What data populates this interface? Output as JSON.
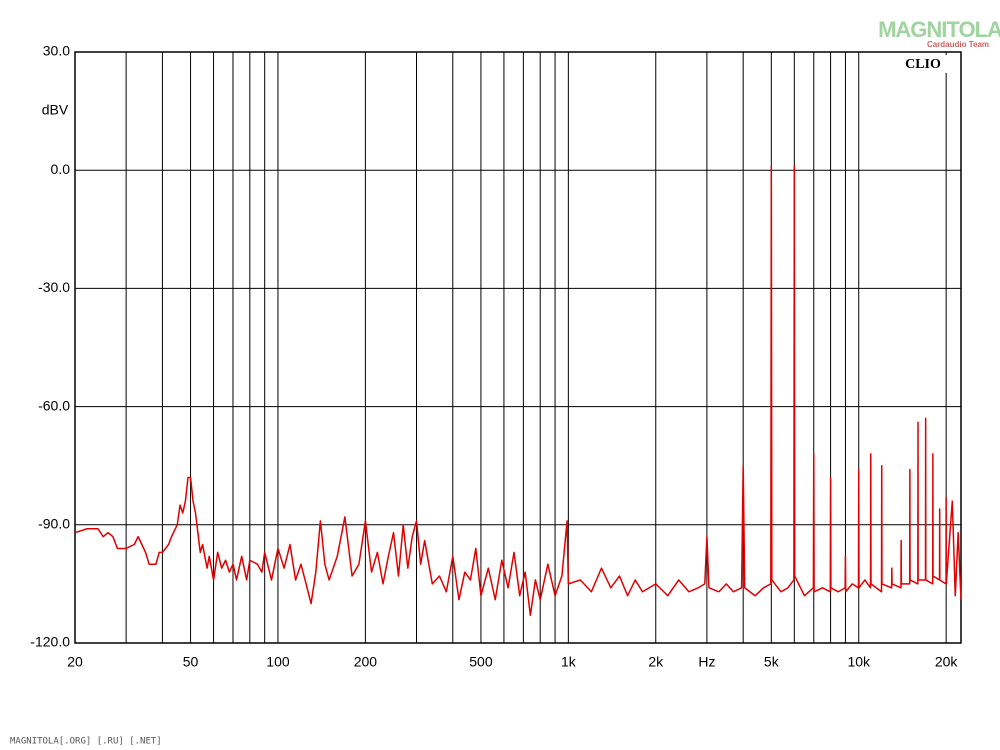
{
  "chart_data": {
    "type": "line",
    "y_axis_label": "dBV",
    "brand": "CLIO",
    "watermark": "MAGNITOLA",
    "watermark_sub": "Cardaudio Team",
    "footer": "MAGNITOLA[.ORG] [.RU] [.NET]",
    "xscale": "log",
    "grid": true,
    "xlim": [
      20,
      22500
    ],
    "ylim": [
      -120,
      30
    ],
    "xticks": [
      20,
      50,
      100,
      200,
      500,
      {
        "value": 1000,
        "label": "1k"
      },
      {
        "value": 2000,
        "label": "2k"
      },
      {
        "value": 3000,
        "label": "Hz"
      },
      {
        "value": 5000,
        "label": "5k"
      },
      {
        "value": 10000,
        "label": "10k"
      },
      {
        "value": 20000,
        "label": "20k"
      }
    ],
    "xminor": [
      30,
      40,
      60,
      70,
      80,
      90,
      300,
      400,
      600,
      700,
      800,
      900,
      4000,
      6000,
      7000,
      8000,
      9000
    ],
    "yticks": [
      {
        "value": 30,
        "label": "30.0"
      },
      {
        "value": 0,
        "label": "0.0"
      },
      {
        "value": -30,
        "label": "-30.0"
      },
      {
        "value": -60,
        "label": "-60.0"
      },
      {
        "value": -90,
        "label": "-90.0"
      },
      {
        "value": -120,
        "label": "-120.0"
      }
    ],
    "series": [
      {
        "color": "#e00000",
        "x": [
          20,
          22,
          24,
          25,
          26,
          27,
          28,
          30,
          32,
          33,
          35,
          36,
          38,
          39,
          40,
          42,
          43,
          45,
          46,
          47,
          48,
          49,
          50,
          51,
          52,
          54,
          55,
          57,
          58,
          60,
          62,
          64,
          66,
          68,
          70,
          72,
          75,
          78,
          80,
          85,
          88,
          90,
          95,
          100,
          105,
          110,
          115,
          120,
          125,
          130,
          135,
          140,
          145,
          150,
          160,
          170,
          180,
          190,
          200,
          210,
          220,
          230,
          240,
          250,
          260,
          270,
          280,
          290,
          300,
          310,
          320,
          340,
          360,
          380,
          400,
          420,
          440,
          460,
          480,
          500,
          530,
          560,
          590,
          620,
          650,
          680,
          710,
          740,
          770,
          800,
          850,
          900,
          950,
          990,
          1000,
          1100,
          1200,
          1300,
          1400,
          1500,
          1600,
          1700,
          1800,
          2000,
          2200,
          2400,
          2600,
          2800,
          2950,
          3000,
          3050,
          3300,
          3500,
          3700,
          3950,
          4000,
          4050,
          4400,
          4700,
          4980,
          5000,
          5020,
          5400,
          5700,
          5980,
          6000,
          6020,
          6500,
          6980,
          7000,
          7020,
          7500,
          7980,
          8000,
          8020,
          8500,
          8980,
          9000,
          9020,
          9500,
          9980,
          10000,
          10020,
          10500,
          10980,
          11000,
          11020,
          11980,
          12000,
          12020,
          12980,
          13000,
          13020,
          13980,
          14000,
          14020,
          14980,
          15000,
          15020,
          15980,
          16000,
          16020,
          16980,
          17000,
          17020,
          17980,
          18000,
          18020,
          18980,
          19000,
          19020,
          19980,
          20000,
          20020,
          21000,
          21500,
          22000,
          22500
        ],
        "values": [
          -92,
          -91,
          -91,
          -93,
          -92,
          -93,
          -96,
          -96,
          -95,
          -93,
          -97,
          -100,
          -100,
          -97,
          -97,
          -95,
          -93,
          -90,
          -85,
          -87,
          -84,
          -78,
          -78,
          -84,
          -87,
          -97,
          -95,
          -101,
          -98,
          -104,
          -97,
          -101,
          -99,
          -102,
          -100,
          -104,
          -98,
          -104,
          -99,
          -100,
          -102,
          -97,
          -104,
          -96,
          -101,
          -95,
          -104,
          -100,
          -105,
          -110,
          -102,
          -89,
          -100,
          -104,
          -98,
          -88,
          -103,
          -100,
          -89,
          -102,
          -97,
          -105,
          -98,
          -92,
          -103,
          -90,
          -101,
          -93,
          -89,
          -100,
          -94,
          -105,
          -103,
          -107,
          -98,
          -109,
          -102,
          -104,
          -96,
          -108,
          -101,
          -109,
          -99,
          -106,
          -97,
          -108,
          -102,
          -113,
          -104,
          -109,
          -100,
          -108,
          -103,
          -89,
          -105,
          -104,
          -107,
          -101,
          -106,
          -103,
          -108,
          -104,
          -107,
          -105,
          -108,
          -104,
          -107,
          -106,
          -105,
          -93,
          -106,
          -107,
          -105,
          -107,
          -106,
          -75,
          -106,
          -108,
          -106,
          -105,
          1,
          -104,
          -107,
          -106,
          -104,
          1,
          -103,
          -108,
          -106,
          -72,
          -107,
          -106,
          -107,
          -78,
          -106,
          -107,
          -106,
          -98,
          -107,
          -105,
          -106,
          -76,
          -106,
          -104,
          -106,
          -72,
          -105,
          -107,
          -75,
          -105,
          -106,
          -101,
          -105,
          -106,
          -94,
          -105,
          -105,
          -76,
          -104,
          -105,
          -64,
          -104,
          -104,
          -63,
          -104,
          -105,
          -72,
          -103,
          -104,
          -86,
          -104,
          -105,
          -83,
          -105,
          -84,
          -108,
          -92,
          -109
        ]
      }
    ]
  }
}
